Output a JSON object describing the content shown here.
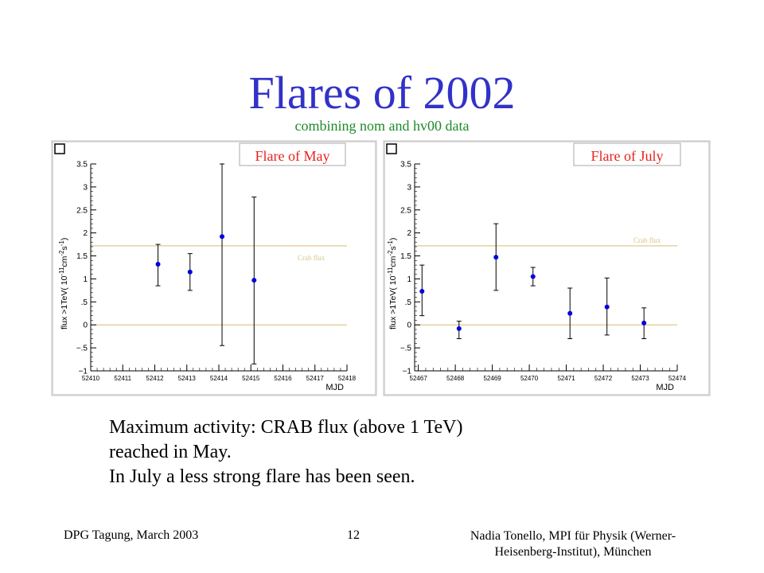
{
  "slide": {
    "title": "Flares of 2002",
    "subtitle": "combining nom and hv00 data",
    "body_lines": [
      "Maximum activity:  CRAB flux (above 1 TeV)",
      "reached  in May.",
      "In July a less strong flare has been seen."
    ],
    "footer": {
      "left": "DPG Tagung, March 2003",
      "page_number": "12",
      "right_line1": "Nadia Tonello, MPI für Physik (Werner-",
      "right_line2": "Heisenberg-Institut), München"
    }
  },
  "colors": {
    "title": "#3232c8",
    "subtitle": "#1f8a2a",
    "panel_background": "#e2e2e2",
    "plot_title": "#e8231e",
    "marker": "#0000e0",
    "reference_lines": "#e0c890",
    "crab_label": "#d8c488"
  },
  "chart_data": [
    {
      "type": "scatter",
      "title": "Flare of May",
      "xlabel": "MJD",
      "ylabel": "flux >1TeV( 10^-11 cm^-2 s^-1)",
      "xlim": [
        52410,
        52418
      ],
      "ylim": [
        -1,
        3.5
      ],
      "x_ticks": [
        52410,
        52411,
        52412,
        52413,
        52414,
        52415,
        52416,
        52417,
        52418
      ],
      "y_ticks": [
        -1,
        -0.5,
        0,
        0.5,
        1,
        1.5,
        2,
        2.5,
        3,
        3.5
      ],
      "grid": false,
      "reference_lines": [
        {
          "label": "Crab flux",
          "y": 1.72
        },
        {
          "label": "",
          "y": 0
        }
      ],
      "points": [
        {
          "x": 52412.1,
          "y": 1.32,
          "err_low": 0.85,
          "err_high": 1.75
        },
        {
          "x": 52413.1,
          "y": 1.15,
          "err_low": 0.75,
          "err_high": 1.55
        },
        {
          "x": 52414.1,
          "y": 1.92,
          "err_low": -0.45,
          "err_high": 3.5
        },
        {
          "x": 52415.1,
          "y": 0.97,
          "err_low": -0.85,
          "err_high": 2.78
        }
      ]
    },
    {
      "type": "scatter",
      "title": "Flare of July",
      "xlabel": "MJD",
      "ylabel": "flux >1TeV( 10^-11 cm^-2 s^-1)",
      "xlim": [
        52466.9,
        52474
      ],
      "ylim": [
        -1,
        3.5
      ],
      "x_ticks": [
        52467,
        52468,
        52469,
        52470,
        52471,
        52472,
        52473,
        52474
      ],
      "y_ticks": [
        -1,
        -0.5,
        0,
        0.5,
        1,
        1.5,
        2,
        2.5,
        3,
        3.5
      ],
      "grid": false,
      "reference_lines": [
        {
          "label": "Crab flux",
          "y": 1.72
        },
        {
          "label": "",
          "y": 0
        }
      ],
      "points": [
        {
          "x": 52467.1,
          "y": 0.73,
          "err_low": 0.2,
          "err_high": 1.3
        },
        {
          "x": 52468.1,
          "y": -0.08,
          "err_low": -0.3,
          "err_high": 0.08
        },
        {
          "x": 52469.1,
          "y": 1.47,
          "err_low": 0.75,
          "err_high": 2.2
        },
        {
          "x": 52470.1,
          "y": 1.05,
          "err_low": 0.85,
          "err_high": 1.25
        },
        {
          "x": 52471.1,
          "y": 0.25,
          "err_low": -0.3,
          "err_high": 0.8
        },
        {
          "x": 52472.1,
          "y": 0.39,
          "err_low": -0.22,
          "err_high": 1.02
        },
        {
          "x": 52473.1,
          "y": 0.04,
          "err_low": -0.3,
          "err_high": 0.37
        }
      ]
    }
  ]
}
